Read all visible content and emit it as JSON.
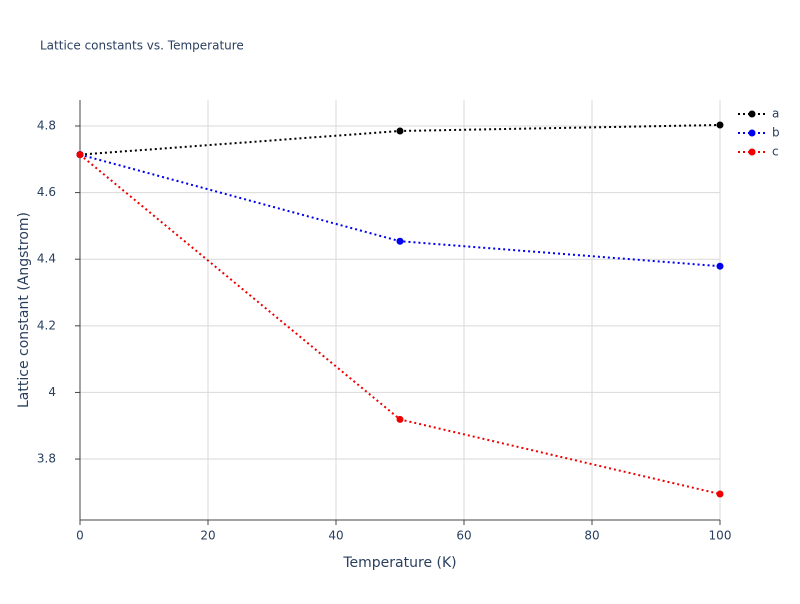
{
  "chart_data": {
    "type": "line",
    "title": "Lattice constants vs. Temperature",
    "x_label": "Temperature (K)",
    "y_label": "Lattice constant (Angstrom)",
    "x": [
      0,
      50,
      100
    ],
    "series": [
      {
        "name": "a",
        "color": "#000000",
        "values": [
          4.714,
          4.785,
          4.803
        ]
      },
      {
        "name": "b",
        "color": "#0000ee",
        "values": [
          4.714,
          4.454,
          4.379
        ]
      },
      {
        "name": "c",
        "color": "#ee0000",
        "values": [
          4.714,
          3.919,
          3.695
        ]
      }
    ],
    "xlim": [
      0,
      100
    ],
    "xticks": [
      0,
      20,
      40,
      60,
      80,
      100
    ],
    "ylim": [
      3.617,
      4.878
    ],
    "yticks": [
      3.8,
      4,
      4.2,
      4.4,
      4.6,
      4.8
    ],
    "grid": true,
    "legend": "top-right"
  }
}
